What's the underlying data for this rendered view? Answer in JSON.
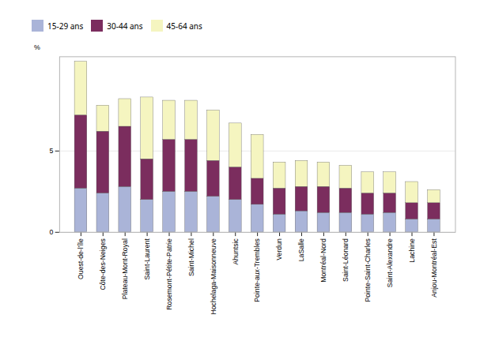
{
  "chart_data": {
    "type": "bar",
    "stacked": true,
    "categories": [
      "Ouest-de-l’île",
      "Côte-des-Neiges",
      "Plateau-Mont-Royal",
      "Saint-Laurent",
      "Rosemont-Pétite-Patrie",
      "Saint-Michel",
      "Hochelaga-Maisonneuve",
      "Ahuntsic",
      "Pointe-aux-Trembles",
      "Verdun",
      "LaSalle",
      "Montréal-Nord",
      "Saint-Léonard",
      "Pointe-Saint-Charles",
      "Saint-Alexandre",
      "Lachine",
      "Anjou-Montréal-Est"
    ],
    "series": [
      {
        "name": "15-29 ans",
        "color": "#aab4d8",
        "values": [
          2.7,
          2.4,
          2.8,
          2.0,
          2.5,
          2.5,
          2.2,
          2.0,
          1.7,
          1.1,
          1.3,
          1.2,
          1.2,
          1.1,
          1.2,
          0.8,
          0.8
        ]
      },
      {
        "name": "30-44 ans",
        "color": "#7b2d5e",
        "values": [
          4.5,
          3.8,
          3.7,
          2.5,
          3.2,
          3.2,
          2.2,
          2.0,
          1.6,
          1.6,
          1.5,
          1.6,
          1.5,
          1.3,
          1.2,
          1.0,
          1.0
        ]
      },
      {
        "name": "45-64 ans",
        "color": "#f5f5c0",
        "values": [
          3.3,
          1.6,
          1.7,
          3.8,
          2.4,
          2.4,
          3.1,
          2.7,
          2.7,
          1.6,
          1.6,
          1.5,
          1.4,
          1.3,
          1.3,
          1.3,
          0.8
        ]
      }
    ],
    "ylabel": "%",
    "ylim": [
      0,
      10.8
    ],
    "yticks": [
      0,
      5
    ],
    "grid": true,
    "legend": "top"
  }
}
